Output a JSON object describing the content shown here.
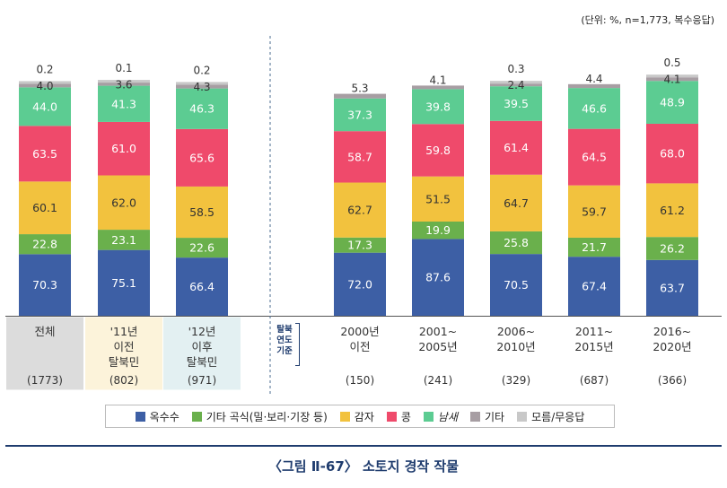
{
  "unit_note": "(단위: %, n=1,773, 복수응답)",
  "legend": [
    {
      "label": "옥수수",
      "color": "#3d5fa5"
    },
    {
      "label": "기타 곡식(밀·보리·기장 등)",
      "color": "#6ab04c"
    },
    {
      "label": "감자",
      "color": "#f2c23e"
    },
    {
      "label": "콩",
      "color": "#ef4a6b"
    },
    {
      "label": "남새",
      "color": "#5ccc92"
    },
    {
      "label": "기타",
      "color": "#a79ea3"
    },
    {
      "label": "모름/무응답",
      "color": "#c8c8c8"
    }
  ],
  "axis_tag": [
    "탈북",
    "연도",
    "기준"
  ],
  "caption": "〈그림 Ⅱ-67〉 소토지 경작 작물",
  "chart_data": {
    "type": "bar",
    "stacked": true,
    "title": "〈그림 Ⅱ-67〉 소토지 경작 작물",
    "ylabel": "%",
    "categories": [
      {
        "lines": [
          "전체"
        ],
        "n": "(1773)",
        "bg": "#dcdcdc"
      },
      {
        "lines": [
          "'11년",
          "이전",
          "탈북민"
        ],
        "n": "(802)",
        "bg": "#fcf3da"
      },
      {
        "lines": [
          "'12년",
          "이후",
          "탈북민"
        ],
        "n": "(971)",
        "bg": "#e3f0f2"
      },
      {
        "lines": [
          "2000년",
          "이전"
        ],
        "n": "(150)",
        "bg": ""
      },
      {
        "lines": [
          "2001~",
          "2005년"
        ],
        "n": "(241)",
        "bg": ""
      },
      {
        "lines": [
          "2006~",
          "2010년"
        ],
        "n": "(329)",
        "bg": ""
      },
      {
        "lines": [
          "2011~",
          "2015년"
        ],
        "n": "(687)",
        "bg": ""
      },
      {
        "lines": [
          "2016~",
          "2020년"
        ],
        "n": "(366)",
        "bg": ""
      }
    ],
    "series": [
      {
        "name": "옥수수",
        "color": "#3d5fa5",
        "values": [
          70.3,
          75.1,
          66.4,
          72.0,
          87.6,
          70.5,
          67.4,
          63.7
        ]
      },
      {
        "name": "기타 곡식(밀·보리·기장 등)",
        "color": "#6ab04c",
        "values": [
          22.8,
          23.1,
          22.6,
          17.3,
          19.9,
          25.8,
          21.7,
          26.2
        ]
      },
      {
        "name": "감자",
        "color": "#f2c23e",
        "values": [
          60.1,
          62.0,
          58.5,
          62.7,
          51.5,
          64.7,
          59.7,
          61.2
        ]
      },
      {
        "name": "콩",
        "color": "#ef4a6b",
        "values": [
          63.5,
          61.0,
          65.6,
          58.7,
          59.8,
          61.4,
          64.5,
          68.0
        ]
      },
      {
        "name": "남새",
        "color": "#5ccc92",
        "values": [
          44.0,
          41.3,
          46.3,
          37.3,
          39.8,
          39.5,
          46.6,
          48.9
        ]
      },
      {
        "name": "기타",
        "color": "#a79ea3",
        "values": [
          4.0,
          3.6,
          4.3,
          5.3,
          4.1,
          2.4,
          4.4,
          4.1
        ]
      },
      {
        "name": "모름/무응답",
        "color": "#c8c8c8",
        "values": [
          0.2,
          0.1,
          0.2,
          null,
          null,
          0.3,
          null,
          0.5
        ]
      }
    ],
    "value_labels": [
      [
        "70.3",
        "75.1",
        "66.4",
        "72.0",
        "87.6",
        "70.5",
        "67.4",
        "63.7"
      ],
      [
        "22.8",
        "23.1",
        "22.6",
        "17.3",
        "19.9",
        "25.8",
        "21.7",
        "26.2"
      ],
      [
        "60.1",
        "62.0",
        "58.5",
        "62.7",
        "51.5",
        "64.7",
        "59.7",
        "61.2"
      ],
      [
        "63.5",
        "61.0",
        "65.6",
        "58.7",
        "59.8",
        "61.4",
        "64.5",
        "68.0"
      ],
      [
        "44.0",
        "41.3",
        "46.3",
        "37.3",
        "39.8",
        "39.5",
        "46.6",
        "48.9"
      ],
      [
        "4.0",
        "3.6",
        "4.3",
        "5.3",
        "4.1",
        "2.4",
        "4.4",
        "4.1"
      ],
      [
        "0.2",
        "0.1",
        "0.2",
        null,
        null,
        "0.3",
        null,
        "0.5"
      ]
    ]
  }
}
